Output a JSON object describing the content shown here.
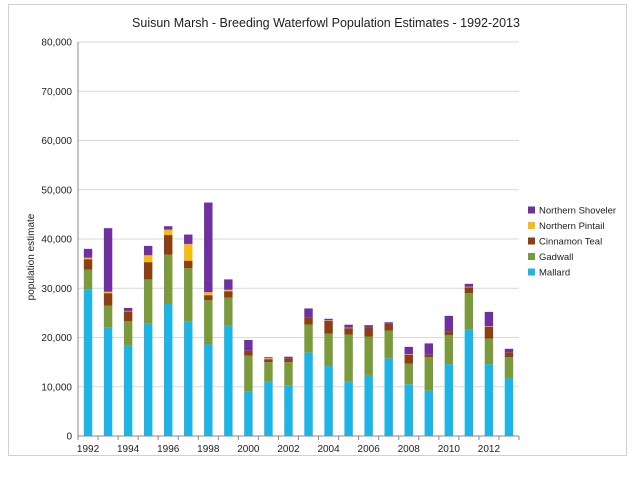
{
  "chart_data": {
    "type": "bar",
    "stacked": true,
    "title": "Suisun Marsh - Breeding Waterfowl Population Estimates - 1992-2013",
    "xlabel": "",
    "ylabel": "population estimate",
    "ylim": [
      0,
      80000
    ],
    "y_ticks": [
      "0",
      "10,000",
      "20,000",
      "30,000",
      "40,000",
      "50,000",
      "60,000",
      "70,000",
      "80,000"
    ],
    "y_tick_values": [
      0,
      10000,
      20000,
      30000,
      40000,
      50000,
      60000,
      70000,
      80000
    ],
    "categories": [
      "1992",
      "1993",
      "1994",
      "1995",
      "1996",
      "1997",
      "1998",
      "1999",
      "2000",
      "2001",
      "2002",
      "2003",
      "2004",
      "2005",
      "2006",
      "2007",
      "2008",
      "2009",
      "2010",
      "2011",
      "2012",
      "2013"
    ],
    "x_tick_labels": [
      "1992",
      "1994",
      "1996",
      "1998",
      "2000",
      "2002",
      "2004",
      "2006",
      "2008",
      "2010",
      "2012"
    ],
    "grid": true,
    "legend_position": "right",
    "series": [
      {
        "name": "Mallard",
        "color": "#1fb4e6",
        "values": [
          29800,
          22000,
          18300,
          22800,
          26800,
          23200,
          18600,
          22400,
          9000,
          11000,
          10200,
          16900,
          14200,
          11000,
          12200,
          15700,
          10500,
          9200,
          14600,
          21600,
          14600,
          11700
        ]
      },
      {
        "name": "Gadwall",
        "color": "#7a9a3c",
        "values": [
          4000,
          4500,
          5000,
          9000,
          10000,
          10900,
          9000,
          5700,
          7300,
          4000,
          4800,
          5700,
          6600,
          9600,
          8000,
          5700,
          4200,
          6800,
          5900,
          7400,
          5200,
          4300
        ]
      },
      {
        "name": "Cinnamon Teal",
        "color": "#8b3f12",
        "values": [
          2100,
          2500,
          2000,
          3500,
          4000,
          1500,
          1000,
          1300,
          1000,
          600,
          800,
          1500,
          2600,
          1300,
          1800,
          1400,
          1800,
          500,
          800,
          1200,
          2400,
          1000
        ]
      },
      {
        "name": "Northern Pintail",
        "color": "#f5bd12",
        "values": [
          300,
          300,
          100,
          1400,
          1100,
          3400,
          600,
          300,
          0,
          200,
          0,
          0,
          100,
          100,
          0,
          0,
          100,
          0,
          0,
          100,
          100,
          0
        ]
      },
      {
        "name": "Northern Shoveler",
        "color": "#7030a0",
        "values": [
          1800,
          12900,
          600,
          1900,
          700,
          1900,
          18200,
          2100,
          2200,
          200,
          300,
          1800,
          300,
          600,
          500,
          300,
          1500,
          2300,
          3100,
          600,
          2900,
          700
        ]
      }
    ]
  }
}
